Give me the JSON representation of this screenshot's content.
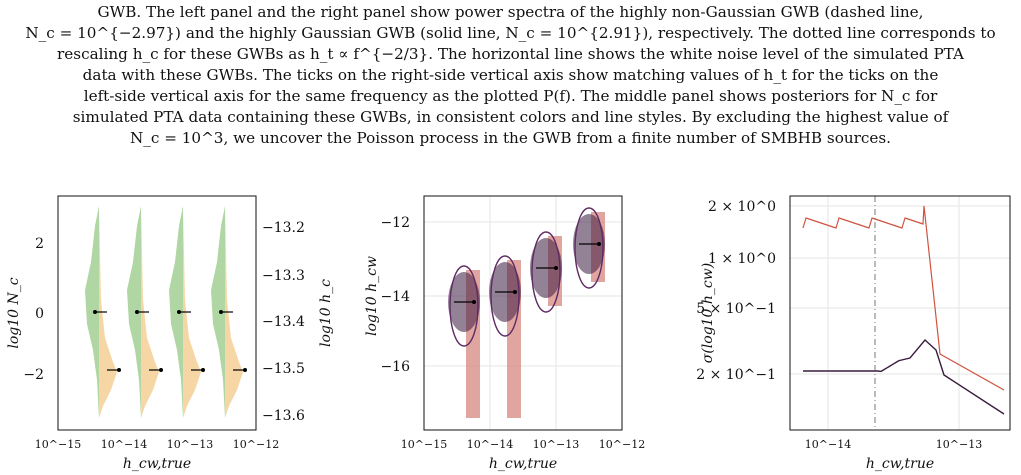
{
  "caption": {
    "lines": [
      "GWB. The left panel and the right panel show power spectra of the highly non-Gaussian GWB (dashed line,",
      "N_c = 10^{−2.97}) and the highly Gaussian GWB (solid line, N_c = 10^{2.91}), respectively. The dotted line corresponds to",
      "rescaling h_c for these GWBs as h_t ∝ f^{−2/3}. The horizontal line shows the white noise level of the simulated PTA",
      "data with these GWBs. The ticks on the right-side vertical axis show matching values of h_t for the ticks on the",
      "left-side vertical axis for the same frequency as the plotted P(f). The middle panel shows posteriors for N_c for",
      "simulated PTA data containing these GWBs, in consistent colors and line styles. By excluding the highest value of",
      "N_c = 10^3, we uncover the Poisson process in the GWB from a finite number of SMBHB sources."
    ]
  },
  "colors": {
    "green": "#9ccc8c",
    "orange": "#f5cf94",
    "red": "#d47f78",
    "purple": "#5e2a63",
    "dark": "#3a1c3f",
    "redline": "#d0533f"
  },
  "panels": {
    "left": {
      "xlabel": "h_cw,true",
      "ylabel_left": "log10 N_c",
      "ylabel_right": "log10 h_c",
      "xticks": [
        "10^−15",
        "10^−14",
        "10^−13",
        "10^−12"
      ],
      "yticks_left": [
        "−2",
        "0",
        "2"
      ],
      "yticks_right": [
        "−13.2",
        "−13.3",
        "−13.4",
        "−13.5",
        "−13.6"
      ]
    },
    "middle": {
      "xlabel": "h_cw,true",
      "ylabel": "log10 h_cw",
      "xticks": [
        "10^−15",
        "10^−14",
        "10^−13",
        "10^−12"
      ],
      "yticks": [
        "−12",
        "−14",
        "−16"
      ]
    },
    "right": {
      "xlabel": "h_cw,true",
      "ylabel": "σ(log10 h_cw)",
      "xticks": [
        "10^−14",
        "10^−13"
      ],
      "yticks": [
        "2 × 10^0",
        "1 × 10^0",
        "5 × 10^−1",
        "2 × 10^−1"
      ]
    }
  }
}
